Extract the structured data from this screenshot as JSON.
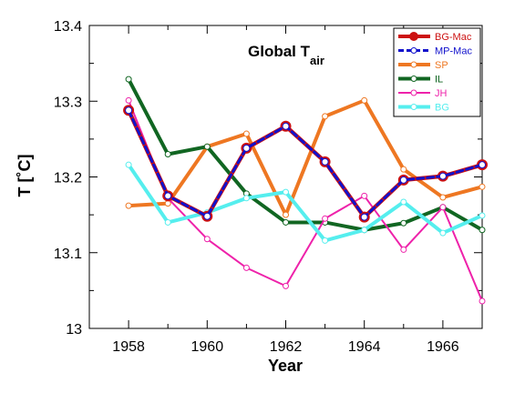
{
  "chart_data": {
    "type": "line",
    "title": "Global T",
    "title_subscript": "air",
    "xlabel": "Year",
    "ylabel": "T [˚C]",
    "xlim": [
      1957,
      1967
    ],
    "ylim": [
      13.0,
      13.4
    ],
    "xticks": [
      "1958",
      "1960",
      "1962",
      "1964",
      "1966"
    ],
    "yticks": [
      "13",
      "13.1",
      "13.2",
      "13.3",
      "13.4"
    ],
    "grid": false,
    "legend_position": "top-right",
    "x": [
      1958,
      1959,
      1960,
      1961,
      1962,
      1963,
      1964,
      1965,
      1966,
      1967
    ],
    "series": [
      {
        "name": "BG-Mac",
        "color": "#cc1111",
        "values": [
          13.288,
          13.175,
          13.148,
          13.238,
          13.267,
          13.22,
          13.147,
          13.196,
          13.201,
          13.216
        ]
      },
      {
        "name": "MP-Mac",
        "color": "#1111cc",
        "values": [
          13.288,
          13.175,
          13.148,
          13.238,
          13.267,
          13.22,
          13.147,
          13.196,
          13.201,
          13.216
        ]
      },
      {
        "name": "SP",
        "color": "#ee7722",
        "values": [
          13.162,
          13.165,
          13.24,
          13.257,
          13.15,
          13.28,
          13.301,
          13.21,
          13.173,
          13.187
        ]
      },
      {
        "name": "IL",
        "color": "#116622",
        "values": [
          13.329,
          13.23,
          13.24,
          13.178,
          13.14,
          13.14,
          13.13,
          13.139,
          13.16,
          13.13
        ]
      },
      {
        "name": "JH",
        "color": "#ee22aa",
        "values": [
          13.301,
          13.172,
          13.118,
          13.08,
          13.056,
          13.145,
          13.175,
          13.104,
          13.16,
          13.036
        ]
      },
      {
        "name": "BG",
        "color": "#55eeee",
        "values": [
          13.216,
          13.14,
          13.153,
          13.172,
          13.18,
          13.116,
          13.13,
          13.167,
          13.126,
          13.149
        ]
      }
    ]
  }
}
